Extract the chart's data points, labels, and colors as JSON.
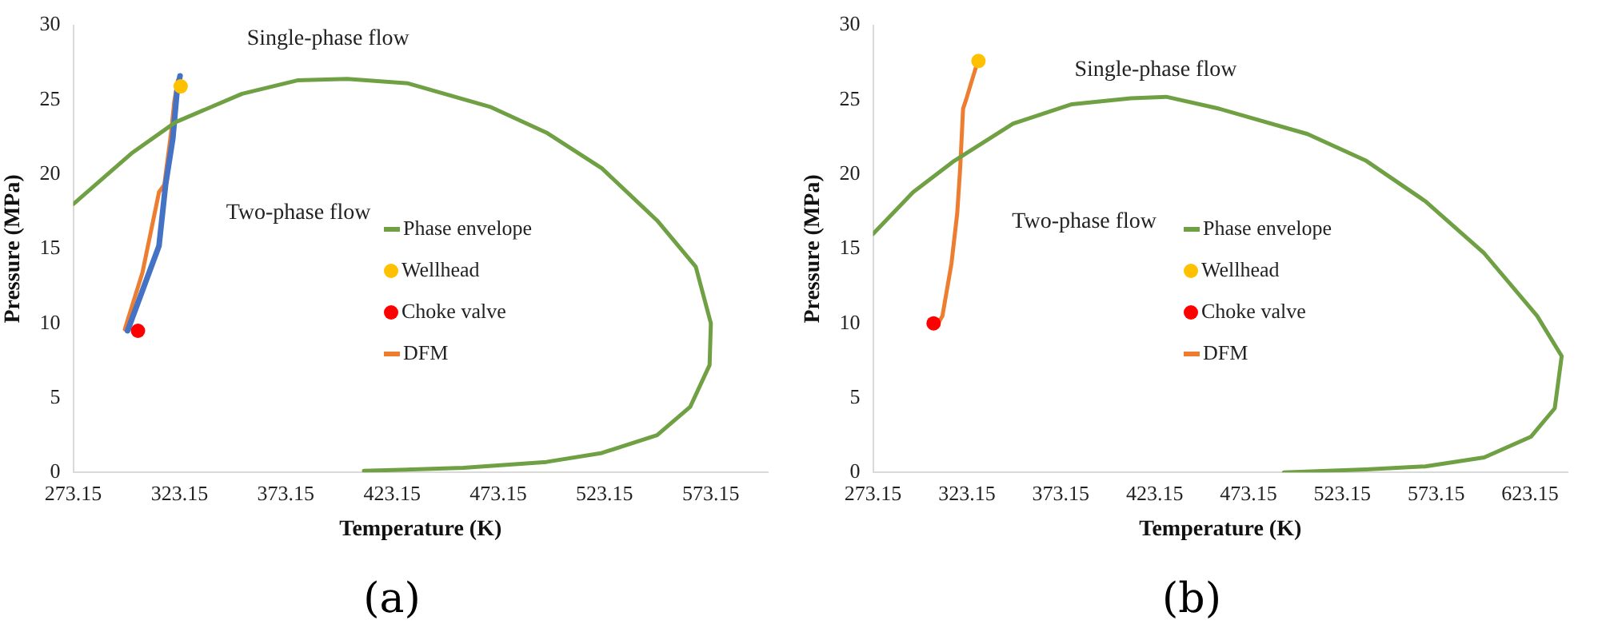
{
  "chart_data": [
    {
      "type": "line",
      "xlabel": "Temperature (K)",
      "ylabel": "Pressure (MPa)",
      "xlim": [
        273.15,
        600
      ],
      "xticks": [
        273.15,
        323.15,
        373.15,
        423.15,
        473.15,
        523.15,
        573.15
      ],
      "ylim": [
        0,
        30
      ],
      "yticks": [
        0,
        5,
        10,
        15,
        20,
        25,
        30
      ],
      "grid": false,
      "legend": "right",
      "annotations": [
        "Single-phase flow",
        "Two-phase flow",
        "(a)"
      ],
      "series": [
        {
          "name": "Phase envelope",
          "color": "#70a044",
          "x": [
            273.15,
            300.5,
            321.3,
            352.6,
            378.6,
            402,
            430.7,
            469.8,
            495.8,
            521.9,
            547.9,
            566.1,
            573.2,
            572.6,
            563.5,
            547.9,
            521.9,
            495.8,
            456.7,
            409.9
          ],
          "values": [
            18.0,
            21.4,
            23.5,
            25.4,
            26.3,
            26.4,
            26.1,
            24.5,
            22.8,
            20.4,
            16.9,
            13.8,
            10.0,
            7.2,
            4.4,
            2.5,
            1.3,
            0.7,
            0.3,
            0.1
          ]
        },
        {
          "type": "scatter",
          "name": "Wellhead",
          "color": "#ffc000",
          "x": [
            323.7
          ],
          "values": [
            25.9
          ]
        },
        {
          "type": "scatter",
          "name": "Choke valve",
          "color": "#ff0000",
          "x": [
            303.6
          ],
          "values": [
            9.5
          ]
        },
        {
          "color": "#4472c4",
          "x": [
            298.7,
            313.5,
            316.6,
            320,
            322,
            323.4
          ],
          "values": [
            9.5,
            15.2,
            19.3,
            22.4,
            25.6,
            26.6
          ]
        },
        {
          "name": "DFM",
          "color": "#ed7d31",
          "x": [
            297.4,
            305.7,
            313.5,
            316,
            319.2,
            320.7,
            322.4
          ],
          "values": [
            9.6,
            13.4,
            18.8,
            19.3,
            22.8,
            24.9,
            26.3
          ]
        }
      ]
    },
    {
      "type": "line",
      "xlabel": "Temperature (K)",
      "ylabel": "Pressure (MPa)",
      "xlim": [
        273.15,
        643.15
      ],
      "xticks": [
        273.15,
        323.15,
        373.15,
        423.15,
        473.15,
        523.15,
        573.15,
        623.15
      ],
      "ylim": [
        0,
        30
      ],
      "yticks": [
        0,
        5,
        10,
        15,
        20,
        25,
        30
      ],
      "grid": false,
      "legend": "right",
      "annotations": [
        "Single-phase flow",
        "Two-phase flow",
        "(b)"
      ],
      "series": [
        {
          "name": "Phase envelope",
          "color": "#70a044",
          "x": [
            273.15,
            294.5,
            316.4,
            347.8,
            379.1,
            410.5,
            429.3,
            457.5,
            504.6,
            535.9,
            567.3,
            598.7,
            626.9,
            640,
            636.3,
            623.7,
            598.7,
            567.3,
            535.9,
            492
          ],
          "values": [
            16.0,
            18.8,
            20.9,
            23.4,
            24.7,
            25.1,
            25.2,
            24.4,
            22.7,
            20.9,
            18.2,
            14.7,
            10.5,
            7.8,
            4.3,
            2.4,
            1.0,
            0.4,
            0.2,
            0.0
          ]
        },
        {
          "type": "scatter",
          "name": "Wellhead",
          "color": "#ffc000",
          "x": [
            329.3
          ],
          "values": [
            27.6
          ]
        },
        {
          "type": "scatter",
          "name": "Choke valve",
          "color": "#ff0000",
          "x": [
            305.4
          ],
          "values": [
            10.0
          ]
        },
        {
          "name": "DFM",
          "color": "#ed7d31",
          "x": [
            307.9,
            310.1,
            314.9,
            318,
            319.6,
            321.1,
            322.7,
            325.8,
            329
          ],
          "values": [
            10.0,
            10.5,
            14.0,
            17.4,
            20.5,
            24.4,
            25.0,
            26.3,
            27.6
          ]
        }
      ]
    }
  ]
}
